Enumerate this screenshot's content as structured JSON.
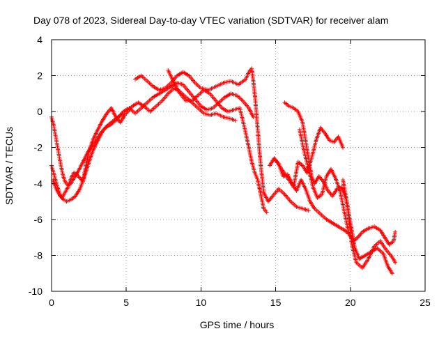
{
  "chart_data": {
    "type": "scatter",
    "title": "Day 078 of 2023, Sidereal Day-to-day VTEC variation (SDTVAR) for receiver alam",
    "xlabel": "GPS time / hours",
    "ylabel": "SDTVAR / TECUs",
    "xlim": [
      0,
      25
    ],
    "ylim": [
      -10,
      4
    ],
    "xticks": [
      0,
      5,
      10,
      15,
      20,
      25
    ],
    "yticks": [
      -10,
      -8,
      -6,
      -4,
      -2,
      0,
      2,
      4
    ],
    "xtick_labels": [
      "0",
      "5",
      "10",
      "15",
      "20",
      "25"
    ],
    "ytick_labels": [
      "-10",
      "-8",
      "-6",
      "-4",
      "-2",
      "0",
      "2",
      "4"
    ],
    "grid": true,
    "marker": "plus",
    "color": "#ff0000",
    "series": [
      {
        "name": "arc-1",
        "points": [
          [
            0.0,
            -3.0
          ],
          [
            0.2,
            -3.6
          ],
          [
            0.4,
            -4.2
          ],
          [
            0.6,
            -4.7
          ],
          [
            0.8,
            -4.9
          ],
          [
            1.0,
            -5.0
          ],
          [
            1.3,
            -4.9
          ],
          [
            1.6,
            -4.7
          ],
          [
            1.9,
            -4.3
          ],
          [
            2.2,
            -3.6
          ],
          [
            2.5,
            -2.8
          ],
          [
            2.8,
            -2.1
          ],
          [
            3.1,
            -1.6
          ],
          [
            3.4,
            -1.1
          ],
          [
            3.7,
            -0.8
          ],
          [
            4.0,
            -0.6
          ],
          [
            4.3,
            -0.4
          ],
          [
            4.6,
            -0.2
          ],
          [
            5.0,
            -0.1
          ],
          [
            5.4,
            0.3
          ],
          [
            5.8,
            0.5
          ],
          [
            6.2,
            0.3
          ],
          [
            6.6,
            0.0
          ],
          [
            7.0,
            0.3
          ],
          [
            7.4,
            0.6
          ],
          [
            7.8,
            1.0
          ],
          [
            8.2,
            1.3
          ],
          [
            8.6,
            1.1
          ],
          [
            9.0,
            0.8
          ],
          [
            9.4,
            0.5
          ],
          [
            9.8,
            0.2
          ],
          [
            10.2,
            -0.1
          ],
          [
            10.6,
            -0.2
          ],
          [
            11.0,
            -0.1
          ],
          [
            11.5,
            -0.3
          ],
          [
            12.0,
            -0.4
          ],
          [
            12.3,
            -0.5
          ]
        ]
      },
      {
        "name": "arc-2",
        "points": [
          [
            0.0,
            -0.3
          ],
          [
            0.15,
            -0.8
          ],
          [
            0.3,
            -1.5
          ],
          [
            0.45,
            -2.2
          ],
          [
            0.6,
            -2.9
          ],
          [
            0.75,
            -3.5
          ],
          [
            0.9,
            -3.9
          ],
          [
            1.1,
            -4.1
          ],
          [
            1.3,
            -4.0
          ],
          [
            1.5,
            -3.7
          ],
          [
            1.8,
            -3.3
          ],
          [
            2.1,
            -2.8
          ],
          [
            2.4,
            -2.3
          ],
          [
            2.8,
            -1.8
          ],
          [
            3.2,
            -1.3
          ],
          [
            3.6,
            -0.9
          ],
          [
            4.0,
            -0.7
          ],
          [
            4.4,
            -0.4
          ],
          [
            4.8,
            0.0
          ],
          [
            5.2,
            0.2
          ],
          [
            5.6,
            -0.1
          ],
          [
            6.0,
            0.2
          ],
          [
            6.4,
            0.5
          ],
          [
            6.8,
            0.8
          ],
          [
            7.2,
            1.0
          ],
          [
            7.6,
            1.2
          ],
          [
            8.0,
            1.4
          ],
          [
            8.4,
            1.6
          ],
          [
            8.8,
            1.5
          ],
          [
            9.2,
            1.1
          ],
          [
            9.6,
            0.7
          ],
          [
            10.0,
            0.3
          ],
          [
            10.4,
            0.1
          ],
          [
            10.8,
            0.2
          ],
          [
            11.2,
            0.5
          ],
          [
            11.6,
            0.8
          ],
          [
            12.0,
            1.0
          ],
          [
            12.4,
            0.9
          ],
          [
            12.8,
            0.6
          ],
          [
            13.2,
            0.2
          ],
          [
            13.5,
            -0.3
          ]
        ]
      },
      {
        "name": "arc-3",
        "points": [
          [
            5.6,
            1.8
          ],
          [
            6.0,
            2.0
          ],
          [
            6.4,
            1.7
          ],
          [
            6.8,
            1.4
          ],
          [
            7.2,
            1.2
          ],
          [
            7.6,
            1.3
          ],
          [
            8.0,
            1.6
          ],
          [
            8.4,
            2.0
          ],
          [
            8.8,
            2.2
          ],
          [
            9.2,
            2.0
          ],
          [
            9.6,
            1.6
          ],
          [
            10.0,
            1.3
          ],
          [
            10.5,
            1.2
          ],
          [
            11.0,
            1.4
          ],
          [
            11.5,
            1.6
          ],
          [
            12.0,
            1.7
          ],
          [
            12.5,
            1.5
          ],
          [
            13.0,
            1.8
          ],
          [
            13.2,
            2.2
          ],
          [
            13.4,
            2.4
          ],
          [
            13.6,
            1.0
          ],
          [
            13.8,
            -1.0
          ],
          [
            14.0,
            -3.0
          ],
          [
            14.2,
            -4.5
          ],
          [
            14.5,
            -5.0
          ],
          [
            14.8,
            -4.7
          ],
          [
            15.2,
            -4.3
          ],
          [
            15.6,
            -4.6
          ],
          [
            16.0,
            -5.0
          ],
          [
            16.4,
            -5.3
          ],
          [
            16.8,
            -5.4
          ],
          [
            17.2,
            -5.5
          ]
        ]
      },
      {
        "name": "arc-4",
        "points": [
          [
            7.8,
            2.3
          ],
          [
            8.2,
            1.6
          ],
          [
            8.6,
            1.0
          ],
          [
            9.0,
            0.6
          ],
          [
            9.4,
            0.6
          ],
          [
            9.8,
            0.9
          ],
          [
            10.2,
            1.2
          ],
          [
            10.6,
            1.0
          ],
          [
            11.0,
            0.6
          ],
          [
            11.4,
            0.2
          ],
          [
            11.8,
            0.0
          ],
          [
            12.2,
            0.1
          ],
          [
            12.6,
            0.2
          ],
          [
            12.8,
            -0.5
          ],
          [
            13.0,
            -1.2
          ],
          [
            13.2,
            -2.0
          ],
          [
            13.4,
            -2.8
          ],
          [
            13.6,
            -3.4
          ],
          [
            13.8,
            -3.8
          ],
          [
            14.0,
            -4.6
          ],
          [
            14.2,
            -5.4
          ],
          [
            14.4,
            -5.6
          ]
        ]
      },
      {
        "name": "arc-5",
        "points": [
          [
            14.6,
            -3.0
          ],
          [
            14.9,
            -2.6
          ],
          [
            15.2,
            -2.9
          ],
          [
            15.5,
            -3.6
          ],
          [
            15.8,
            -3.5
          ],
          [
            16.1,
            -4.0
          ],
          [
            16.4,
            -4.4
          ],
          [
            16.7,
            -3.8
          ],
          [
            17.0,
            -4.3
          ],
          [
            17.3,
            -5.0
          ],
          [
            17.6,
            -5.4
          ],
          [
            18.0,
            -5.7
          ],
          [
            18.4,
            -6.0
          ],
          [
            18.8,
            -6.2
          ],
          [
            19.2,
            -6.4
          ],
          [
            19.6,
            -6.6
          ],
          [
            19.9,
            -6.8
          ]
        ]
      },
      {
        "name": "arc-6",
        "points": [
          [
            15.6,
            0.5
          ],
          [
            15.9,
            0.3
          ],
          [
            16.2,
            0.2
          ],
          [
            16.5,
            0.0
          ],
          [
            16.8,
            -0.6
          ],
          [
            17.0,
            -1.6
          ],
          [
            17.2,
            -2.6
          ],
          [
            17.4,
            -3.6
          ],
          [
            17.6,
            -4.0
          ],
          [
            17.9,
            -3.6
          ],
          [
            18.2,
            -3.9
          ],
          [
            18.5,
            -4.4
          ],
          [
            18.8,
            -4.7
          ],
          [
            19.1,
            -4.3
          ],
          [
            19.4,
            -4.2
          ],
          [
            19.7,
            -4.8
          ],
          [
            20.0,
            -6.2
          ],
          [
            20.3,
            -7.6
          ],
          [
            20.6,
            -8.2
          ],
          [
            21.0,
            -8.0
          ],
          [
            21.4,
            -7.8
          ],
          [
            21.8,
            -7.6
          ],
          [
            22.2,
            -7.9
          ],
          [
            22.5,
            -8.6
          ],
          [
            22.8,
            -9.0
          ]
        ]
      },
      {
        "name": "arc-7",
        "points": [
          [
            15.0,
            -2.7
          ],
          [
            15.4,
            -3.2
          ],
          [
            15.8,
            -3.7
          ],
          [
            16.2,
            -4.2
          ],
          [
            16.5,
            -2.8
          ],
          [
            16.8,
            -3.0
          ],
          [
            17.1,
            -3.4
          ],
          [
            17.4,
            -2.6
          ],
          [
            17.7,
            -1.6
          ],
          [
            18.0,
            -0.9
          ],
          [
            18.3,
            -1.2
          ],
          [
            18.6,
            -1.6
          ],
          [
            18.9,
            -1.7
          ],
          [
            19.2,
            -1.4
          ],
          [
            19.5,
            -2.0
          ]
        ]
      },
      {
        "name": "arc-8",
        "points": [
          [
            16.6,
            -1.0
          ],
          [
            16.9,
            -2.2
          ],
          [
            17.2,
            -3.2
          ],
          [
            17.5,
            -4.2
          ],
          [
            17.8,
            -4.8
          ],
          [
            18.1,
            -4.6
          ],
          [
            18.4,
            -3.6
          ],
          [
            18.7,
            -3.2
          ],
          [
            19.0,
            -3.7
          ],
          [
            19.3,
            -4.4
          ],
          [
            19.6,
            -5.6
          ],
          [
            19.9,
            -6.8
          ],
          [
            20.2,
            -7.2
          ],
          [
            20.5,
            -7.0
          ],
          [
            20.8,
            -6.7
          ],
          [
            21.2,
            -6.5
          ],
          [
            21.6,
            -6.4
          ],
          [
            22.0,
            -6.6
          ],
          [
            22.3,
            -7.0
          ],
          [
            22.6,
            -7.4
          ],
          [
            22.9,
            -7.2
          ],
          [
            23.0,
            -6.7
          ]
        ]
      },
      {
        "name": "arc-9",
        "points": [
          [
            19.5,
            -3.8
          ],
          [
            19.8,
            -5.2
          ],
          [
            20.1,
            -7.4
          ],
          [
            20.4,
            -8.4
          ],
          [
            20.8,
            -8.7
          ],
          [
            21.2,
            -8.2
          ],
          [
            21.6,
            -7.5
          ],
          [
            22.0,
            -7.2
          ],
          [
            22.4,
            -7.7
          ],
          [
            22.8,
            -8.1
          ],
          [
            23.0,
            -8.4
          ]
        ]
      },
      {
        "name": "arc-10",
        "points": [
          [
            0.1,
            -3.8
          ],
          [
            0.3,
            -4.3
          ],
          [
            0.5,
            -4.6
          ],
          [
            0.7,
            -4.8
          ],
          [
            0.9,
            -4.5
          ],
          [
            1.1,
            -4.2
          ],
          [
            1.3,
            -3.7
          ],
          [
            1.5,
            -3.4
          ],
          [
            1.8,
            -3.6
          ],
          [
            2.1,
            -3.9
          ],
          [
            2.3,
            -3.0
          ],
          [
            2.5,
            -2.2
          ],
          [
            2.8,
            -1.5
          ],
          [
            3.1,
            -1.0
          ],
          [
            3.4,
            -0.5
          ],
          [
            3.7,
            -0.1
          ],
          [
            4.0,
            0.2
          ],
          [
            4.3,
            -0.3
          ],
          [
            4.6,
            -0.6
          ],
          [
            4.9,
            -0.2
          ]
        ]
      }
    ]
  }
}
